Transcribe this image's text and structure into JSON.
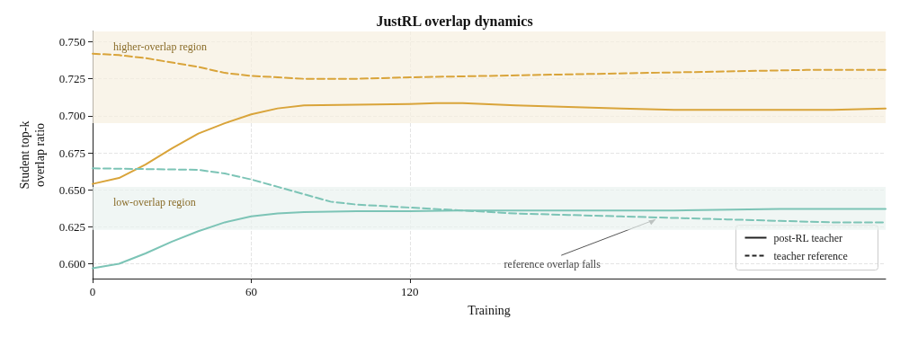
{
  "chart_data": {
    "type": "line",
    "title": "JustRL overlap dynamics",
    "xlabel": "Training",
    "ylabel": "Student top-k\noverlap ratio",
    "xlim": [
      0,
      300
    ],
    "xticks": [
      0,
      60,
      120
    ],
    "ylim": [
      0.59,
      0.757
    ],
    "yticks": [
      {
        "value": 0.6,
        "label": "0.600"
      },
      0.625,
      {
        "value": 0.65,
        "label": "0.650"
      },
      0.675,
      {
        "value": 0.7,
        "label": "0.700"
      },
      0.725,
      {
        "value": 0.75,
        "label": "0.750"
      }
    ],
    "grid": true,
    "marker": "none",
    "series": [
      {
        "color": "#d9a43a",
        "line_style": "solid",
        "x": [
          0,
          10,
          20,
          30,
          40,
          50,
          60,
          70,
          80,
          100,
          120,
          130,
          140,
          160,
          180,
          200,
          220,
          240,
          260,
          280,
          300
        ],
        "values": [
          0.654,
          0.658,
          0.667,
          0.678,
          0.688,
          0.695,
          0.701,
          0.705,
          0.707,
          0.7075,
          0.708,
          0.7085,
          0.7085,
          0.707,
          0.706,
          0.705,
          0.704,
          0.704,
          0.704,
          0.704,
          0.705
        ]
      },
      {
        "color": "#d9a43a",
        "line_style": "dashed",
        "x": [
          0,
          10,
          20,
          30,
          40,
          50,
          60,
          80,
          100,
          120,
          150,
          180,
          210,
          240,
          270,
          300
        ],
        "values": [
          0.742,
          0.741,
          0.739,
          0.736,
          0.733,
          0.729,
          0.727,
          0.725,
          0.725,
          0.726,
          0.727,
          0.728,
          0.729,
          0.73,
          0.731,
          0.731
        ]
      },
      {
        "color": "#7cc4b6",
        "line_style": "solid",
        "x": [
          0,
          10,
          20,
          30,
          40,
          50,
          60,
          70,
          80,
          100,
          120,
          140,
          180,
          220,
          260,
          300
        ],
        "values": [
          0.597,
          0.6,
          0.607,
          0.615,
          0.622,
          0.628,
          0.632,
          0.634,
          0.635,
          0.6355,
          0.6355,
          0.636,
          0.636,
          0.636,
          0.637,
          0.637
        ]
      },
      {
        "color": "#7cc4b6",
        "line_style": "dashed",
        "x": [
          0,
          40,
          50,
          60,
          70,
          80,
          90,
          100,
          120,
          140,
          160,
          180,
          200,
          220,
          240,
          260,
          280,
          300
        ],
        "values": [
          0.6645,
          0.6635,
          0.661,
          0.657,
          0.652,
          0.647,
          0.642,
          0.64,
          0.638,
          0.636,
          0.634,
          0.633,
          0.632,
          0.631,
          0.63,
          0.629,
          0.628,
          0.628
        ]
      }
    ],
    "bands": [
      {
        "axis": "y",
        "from": 0.695,
        "to": 0.757,
        "label": "higher-overlap region",
        "color": "#f7efdf"
      },
      {
        "axis": "y",
        "from": 0.623,
        "to": 0.652,
        "label": "low-overlap region",
        "color": "#eaf2ef"
      }
    ],
    "annotations": [
      "post-RL teacher",
      "teacher reference",
      {
        "text": "reference overlap falls",
        "x": 213,
        "y": 0.63
      }
    ]
  }
}
